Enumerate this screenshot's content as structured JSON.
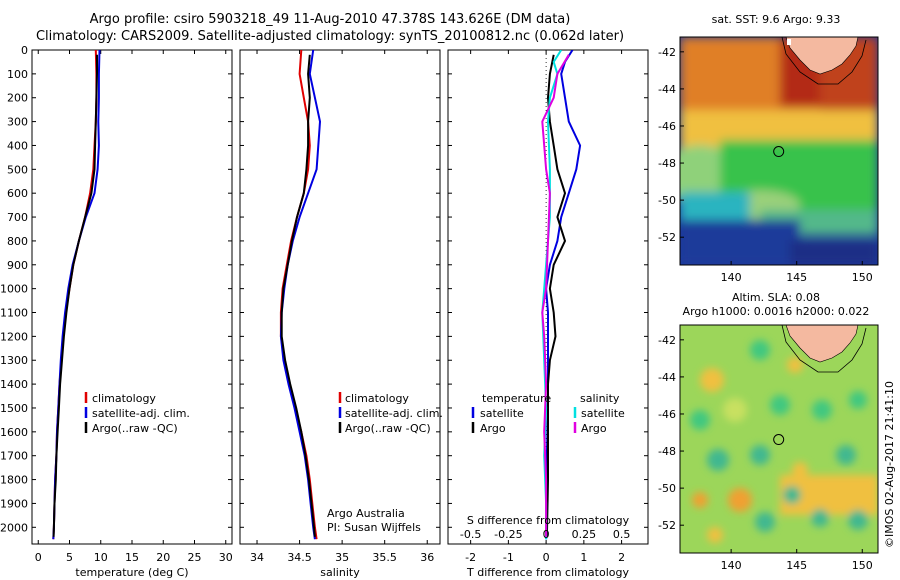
{
  "header": {
    "line1": "Argo profile: csiro 5903218_49 11-Aug-2010 47.378S 143.626E (DM data)",
    "line2": "Climatology: CARS2009. Satellite-adjusted climatology: synTS_20100812.nc (0.062d later)"
  },
  "colors": {
    "climatology": "#e00000",
    "satellite": "#0000e0",
    "argo": "#000000",
    "cyan": "#00e0e0",
    "magenta": "#e000e0"
  },
  "chart_data": [
    {
      "type": "line",
      "xlabel": "temperature (deg C)",
      "ylabel": "",
      "xlim": [
        -1,
        31
      ],
      "ylim": [
        2070,
        0
      ],
      "xticks": [
        0,
        5,
        10,
        15,
        20,
        25,
        30
      ],
      "yticks": [
        0,
        100,
        200,
        300,
        400,
        500,
        600,
        700,
        800,
        900,
        1000,
        1100,
        1200,
        1300,
        1400,
        1500,
        1600,
        1700,
        1800,
        1900,
        2000
      ],
      "legend": [
        "climatology",
        "satellite-adj. clim.",
        "Argo(..raw -QC)"
      ],
      "legend_position": "center",
      "series": [
        {
          "name": "climatology",
          "color": "#e00000",
          "points": [
            [
              9.2,
              0
            ],
            [
              9.3,
              100
            ],
            [
              9.3,
              200
            ],
            [
              9.2,
              300
            ],
            [
              9.0,
              400
            ],
            [
              8.8,
              500
            ],
            [
              8.3,
              600
            ],
            [
              7.5,
              700
            ],
            [
              6.5,
              800
            ],
            [
              5.6,
              900
            ],
            [
              5.0,
              1000
            ],
            [
              4.4,
              1100
            ],
            [
              4.0,
              1200
            ],
            [
              3.7,
              1300
            ],
            [
              3.4,
              1400
            ],
            [
              3.2,
              1500
            ],
            [
              3.0,
              1600
            ],
            [
              2.9,
              1700
            ],
            [
              2.7,
              1800
            ],
            [
              2.6,
              1900
            ],
            [
              2.5,
              2000
            ],
            [
              2.4,
              2050
            ]
          ]
        },
        {
          "name": "satellite-adj. clim.",
          "color": "#0000e0",
          "points": [
            [
              9.8,
              0
            ],
            [
              9.7,
              100
            ],
            [
              9.7,
              200
            ],
            [
              9.6,
              300
            ],
            [
              9.7,
              400
            ],
            [
              9.5,
              500
            ],
            [
              9.0,
              600
            ],
            [
              7.6,
              700
            ],
            [
              6.5,
              800
            ],
            [
              5.5,
              900
            ],
            [
              4.8,
              1000
            ],
            [
              4.3,
              1100
            ],
            [
              3.9,
              1200
            ],
            [
              3.6,
              1300
            ],
            [
              3.4,
              1400
            ],
            [
              3.2,
              1500
            ],
            [
              3.0,
              1600
            ],
            [
              2.9,
              1700
            ],
            [
              2.7,
              1800
            ],
            [
              2.6,
              1900
            ],
            [
              2.5,
              2000
            ],
            [
              2.4,
              2050
            ]
          ]
        },
        {
          "name": "Argo(..raw -QC)",
          "color": "#000000",
          "points": [
            [
              9.4,
              20
            ],
            [
              9.4,
              100
            ],
            [
              9.3,
              200
            ],
            [
              9.2,
              300
            ],
            [
              9.1,
              400
            ],
            [
              9.0,
              500
            ],
            [
              8.5,
              600
            ],
            [
              7.5,
              700
            ],
            [
              6.5,
              800
            ],
            [
              5.6,
              900
            ],
            [
              5.0,
              1000
            ],
            [
              4.5,
              1100
            ],
            [
              4.1,
              1200
            ],
            [
              3.8,
              1300
            ],
            [
              3.5,
              1400
            ],
            [
              3.3,
              1500
            ],
            [
              3.1,
              1600
            ],
            [
              2.9,
              1700
            ],
            [
              2.8,
              1800
            ],
            [
              2.6,
              1900
            ],
            [
              2.5,
              2000
            ],
            [
              2.45,
              2040
            ]
          ]
        }
      ]
    },
    {
      "type": "line",
      "xlabel": "salinity",
      "xlim": [
        33.8,
        36.15
      ],
      "ylim": [
        2070,
        0
      ],
      "xticks": [
        34,
        34.5,
        35,
        35.5,
        36
      ],
      "legend": [
        "climatology",
        "satellite-adj. clim.",
        "Argo(..raw -QC)"
      ],
      "legend_position": "center-right",
      "annotation": [
        "Argo Australia",
        "PI: Susan Wijffels"
      ],
      "series": [
        {
          "name": "climatology",
          "color": "#e00000",
          "points": [
            [
              34.52,
              0
            ],
            [
              34.5,
              100
            ],
            [
              34.55,
              200
            ],
            [
              34.6,
              300
            ],
            [
              34.62,
              400
            ],
            [
              34.6,
              500
            ],
            [
              34.55,
              600
            ],
            [
              34.47,
              700
            ],
            [
              34.4,
              800
            ],
            [
              34.35,
              900
            ],
            [
              34.3,
              1000
            ],
            [
              34.28,
              1100
            ],
            [
              34.28,
              1200
            ],
            [
              34.32,
              1300
            ],
            [
              34.38,
              1400
            ],
            [
              34.45,
              1500
            ],
            [
              34.52,
              1600
            ],
            [
              34.58,
              1700
            ],
            [
              34.62,
              1800
            ],
            [
              34.65,
              1900
            ],
            [
              34.68,
              2000
            ],
            [
              34.7,
              2050
            ]
          ]
        },
        {
          "name": "satellite-adj. clim.",
          "color": "#0000e0",
          "points": [
            [
              34.66,
              0
            ],
            [
              34.62,
              100
            ],
            [
              34.68,
              200
            ],
            [
              34.74,
              300
            ],
            [
              34.72,
              400
            ],
            [
              34.7,
              500
            ],
            [
              34.6,
              600
            ],
            [
              34.5,
              700
            ],
            [
              34.42,
              800
            ],
            [
              34.36,
              900
            ],
            [
              34.32,
              1000
            ],
            [
              34.29,
              1100
            ],
            [
              34.28,
              1200
            ],
            [
              34.31,
              1300
            ],
            [
              34.37,
              1400
            ],
            [
              34.44,
              1500
            ],
            [
              34.5,
              1600
            ],
            [
              34.56,
              1700
            ],
            [
              34.6,
              1800
            ],
            [
              34.63,
              1900
            ],
            [
              34.66,
              2000
            ],
            [
              34.68,
              2050
            ]
          ]
        },
        {
          "name": "Argo(..raw -QC)",
          "color": "#000000",
          "points": [
            [
              34.62,
              20
            ],
            [
              34.6,
              100
            ],
            [
              34.62,
              200
            ],
            [
              34.6,
              300
            ],
            [
              34.6,
              400
            ],
            [
              34.58,
              500
            ],
            [
              34.55,
              600
            ],
            [
              34.47,
              700
            ],
            [
              34.41,
              800
            ],
            [
              34.36,
              900
            ],
            [
              34.31,
              1000
            ],
            [
              34.29,
              1100
            ],
            [
              34.29,
              1200
            ],
            [
              34.33,
              1300
            ],
            [
              34.39,
              1400
            ],
            [
              34.46,
              1500
            ],
            [
              34.52,
              1600
            ],
            [
              34.57,
              1700
            ],
            [
              34.61,
              1800
            ],
            [
              34.64,
              1900
            ],
            [
              34.67,
              2000
            ],
            [
              34.68,
              2040
            ]
          ]
        }
      ]
    },
    {
      "type": "line",
      "xlabel": "T difference from climatology",
      "xlabel_top": "S difference from climatology",
      "xlim": [
        -2.6,
        2.7
      ],
      "ylim": [
        2070,
        0
      ],
      "xticks": [
        -2,
        -1,
        0,
        1,
        2
      ],
      "xticks_s": [
        "-0.5",
        "-0.25",
        "0",
        "0.25",
        "0.5"
      ],
      "legend_temperature": {
        "title": "temperature",
        "entries": [
          "satellite",
          "Argo"
        ]
      },
      "legend_salinity": {
        "title": "salinity",
        "entries": [
          "satellite",
          "Argo"
        ]
      },
      "series": [
        {
          "name": "temperature satellite",
          "color": "#0000e0",
          "points": [
            [
              0.7,
              0
            ],
            [
              0.5,
              50
            ],
            [
              0.4,
              100
            ],
            [
              0.5,
              200
            ],
            [
              0.6,
              300
            ],
            [
              0.9,
              400
            ],
            [
              0.8,
              500
            ],
            [
              0.6,
              600
            ],
            [
              0.4,
              700
            ],
            [
              0.3,
              800
            ],
            [
              0.1,
              900
            ],
            [
              0.0,
              1000
            ],
            [
              0.05,
              1100
            ],
            [
              0.05,
              1200
            ],
            [
              0.05,
              1300
            ],
            [
              0.05,
              1500
            ],
            [
              0.02,
              1700
            ],
            [
              0.02,
              1900
            ],
            [
              0.0,
              2050
            ]
          ]
        },
        {
          "name": "temperature Argo",
          "color": "#000000",
          "points": [
            [
              0.2,
              20
            ],
            [
              0.1,
              100
            ],
            [
              0.05,
              200
            ],
            [
              0.1,
              300
            ],
            [
              0.2,
              400
            ],
            [
              0.3,
              500
            ],
            [
              0.5,
              600
            ],
            [
              0.3,
              700
            ],
            [
              0.5,
              800
            ],
            [
              0.2,
              900
            ],
            [
              0.1,
              1000
            ],
            [
              0.2,
              1100
            ],
            [
              0.25,
              1200
            ],
            [
              0.1,
              1300
            ],
            [
              0.05,
              1400
            ],
            [
              0.05,
              1600
            ],
            [
              0.05,
              1800
            ],
            [
              0.02,
              2040
            ]
          ]
        },
        {
          "name": "salinity satellite",
          "color": "#00e0e0",
          "points": [
            [
              0.4,
              0
            ],
            [
              0.2,
              50
            ],
            [
              0.3,
              100
            ],
            [
              0.1,
              200
            ],
            [
              0.05,
              300
            ],
            [
              0.1,
              500
            ],
            [
              0.1,
              700
            ],
            [
              0.0,
              900
            ],
            [
              -0.1,
              1100
            ],
            [
              -0.05,
              1300
            ],
            [
              0.0,
              1500
            ],
            [
              -0.05,
              1700
            ],
            [
              0.0,
              1900
            ],
            [
              0.0,
              2050
            ]
          ]
        },
        {
          "name": "salinity Argo",
          "color": "#e000e0",
          "points": [
            [
              0.6,
              20
            ],
            [
              0.3,
              100
            ],
            [
              0.2,
              200
            ],
            [
              -0.1,
              300
            ],
            [
              -0.05,
              400
            ],
            [
              0.0,
              500
            ],
            [
              0.1,
              600
            ],
            [
              0.05,
              800
            ],
            [
              0.0,
              1000
            ],
            [
              -0.1,
              1100
            ],
            [
              -0.05,
              1200
            ],
            [
              0.0,
              1400
            ],
            [
              -0.05,
              1600
            ],
            [
              0.0,
              1800
            ],
            [
              0.0,
              2040
            ]
          ]
        }
      ]
    },
    {
      "type": "heatmap",
      "title": "sat. SST: 9.6  Argo: 9.33",
      "xlim": [
        136.1,
        151.2
      ],
      "ylim": [
        -53.5,
        -41.2
      ],
      "xticks": [
        140,
        145,
        150
      ],
      "yticks": [
        -42,
        -44,
        -46,
        -48,
        -50,
        -52
      ],
      "float_position": [
        143.626,
        -47.378
      ]
    },
    {
      "type": "heatmap",
      "title": "Altim. SLA: 0.08",
      "subtitle": "Argo h1000: 0.0016  h2000: 0.022",
      "xlim": [
        136.1,
        151.2
      ],
      "ylim": [
        -53.5,
        -41.2
      ],
      "xticks": [
        140,
        145,
        150
      ],
      "yticks": [
        -42,
        -44,
        -46,
        -48,
        -50,
        -52
      ],
      "float_position": [
        143.626,
        -47.378
      ]
    }
  ],
  "footer": {
    "stamp": "©IMOS 02-Aug-2017 21:41:10"
  }
}
